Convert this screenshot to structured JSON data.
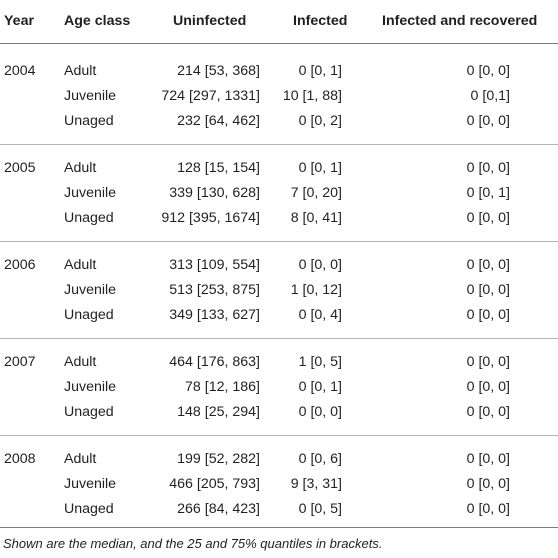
{
  "table": {
    "headers": {
      "year": "Year",
      "age_class": "Age class",
      "uninfected": "Uninfected",
      "infected": "Infected",
      "recovered": "Infected and recovered"
    },
    "rows": [
      {
        "year": "2004",
        "age": "Adult",
        "uninfected": "214 [53, 368]",
        "infected": "0 [0, 1]",
        "recovered": "0 [0, 0]"
      },
      {
        "year": "",
        "age": "Juvenile",
        "uninfected": "724 [297, 1331]",
        "infected": "10 [1, 88]",
        "recovered": "0 [0,1]"
      },
      {
        "year": "",
        "age": "Unaged",
        "uninfected": "232 [64, 462]",
        "infected": "0 [0, 2]",
        "recovered": "0 [0, 0]"
      },
      {
        "year": "2005",
        "age": "Adult",
        "uninfected": "128 [15, 154]",
        "infected": "0 [0, 1]",
        "recovered": "0 [0, 0]"
      },
      {
        "year": "",
        "age": "Juvenile",
        "uninfected": "339 [130, 628]",
        "infected": "7 [0, 20]",
        "recovered": "0 [0, 1]"
      },
      {
        "year": "",
        "age": "Unaged",
        "uninfected": "912 [395, 1674]",
        "infected": "8 [0, 41]",
        "recovered": "0 [0, 0]"
      },
      {
        "year": "2006",
        "age": "Adult",
        "uninfected": "313 [109, 554]",
        "infected": "0 [0, 0]",
        "recovered": "0 [0, 0]"
      },
      {
        "year": "",
        "age": "Juvenile",
        "uninfected": "513 [253, 875]",
        "infected": "1 [0, 12]",
        "recovered": "0 [0, 0]"
      },
      {
        "year": "",
        "age": "Unaged",
        "uninfected": "349 [133, 627]",
        "infected": "0 [0, 4]",
        "recovered": "0 [0, 0]"
      },
      {
        "year": "2007",
        "age": "Adult",
        "uninfected": "464 [176, 863]",
        "infected": "1 [0, 5]",
        "recovered": "0 [0, 0]"
      },
      {
        "year": "",
        "age": "Juvenile",
        "uninfected": "78 [12, 186]",
        "infected": "0 [0, 1]",
        "recovered": "0 [0, 0]"
      },
      {
        "year": "",
        "age": "Unaged",
        "uninfected": "148 [25, 294]",
        "infected": "0 [0, 0]",
        "recovered": "0 [0, 0]"
      },
      {
        "year": "2008",
        "age": "Adult",
        "uninfected": "199 [52, 282]",
        "infected": "0 [0, 6]",
        "recovered": "0 [0, 0]"
      },
      {
        "year": "",
        "age": "Juvenile",
        "uninfected": "466 [205, 793]",
        "infected": "9 [3, 31]",
        "recovered": "0 [0, 0]"
      },
      {
        "year": "",
        "age": "Unaged",
        "uninfected": "266 [84, 423]",
        "infected": "0 [0, 5]",
        "recovered": "0 [0, 0]"
      }
    ]
  },
  "footnote": "Shown are the median, and the 25 and 75% quantiles in brackets."
}
